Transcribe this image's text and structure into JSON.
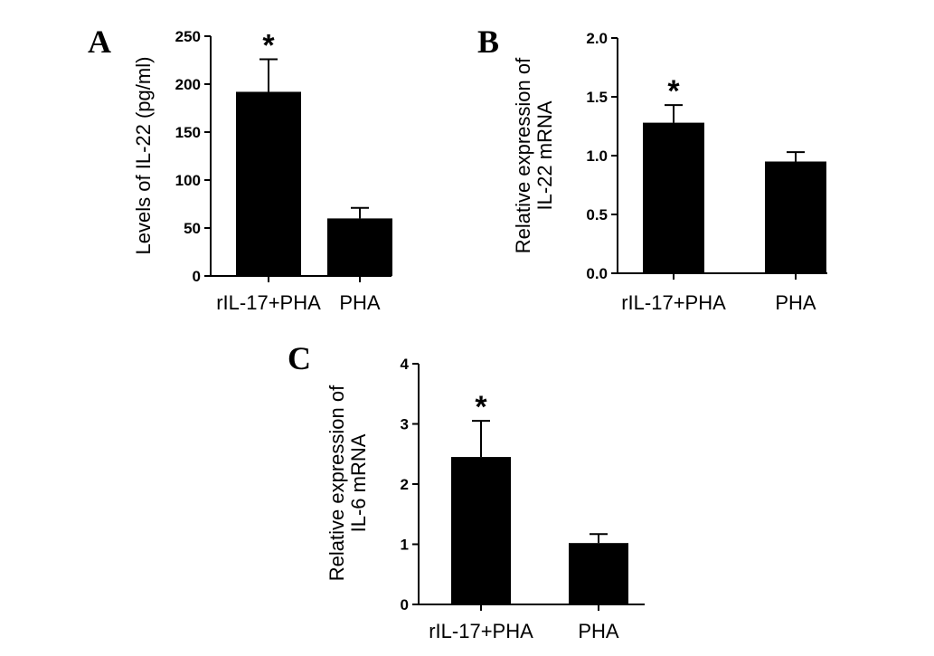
{
  "chart_data": [
    {
      "panel": "A",
      "type": "bar",
      "categories": [
        "rIL-17+PHA",
        "PHA"
      ],
      "values": [
        192,
        60
      ],
      "errors": [
        34,
        11
      ],
      "annotations": [
        "*",
        ""
      ],
      "ylabel": [
        "Levels of  IL-22 (pg/ml)"
      ],
      "ylim": [
        0,
        250
      ],
      "yticks": [
        "0",
        "50",
        "100",
        "150",
        "200",
        "250"
      ],
      "bar_color": "#000000"
    },
    {
      "panel": "B",
      "type": "bar",
      "categories": [
        "rIL-17+PHA",
        "PHA"
      ],
      "values": [
        1.28,
        0.95
      ],
      "errors": [
        0.15,
        0.08
      ],
      "annotations": [
        "*",
        ""
      ],
      "ylabel": [
        "Relative expression of",
        "IL-22 mRNA"
      ],
      "ylim": [
        0,
        2.0
      ],
      "yticks": [
        "0.0",
        "0.5",
        "1.0",
        "1.5",
        "2.0"
      ],
      "bar_color": "#000000"
    },
    {
      "panel": "C",
      "type": "bar",
      "categories": [
        "rIL-17+PHA",
        "PHA"
      ],
      "values": [
        2.45,
        1.02
      ],
      "errors": [
        0.6,
        0.15
      ],
      "annotations": [
        "*",
        ""
      ],
      "ylabel": [
        "Relative expression of",
        "IL-6 mRNA"
      ],
      "ylim": [
        0,
        4
      ],
      "yticks": [
        "0",
        "1",
        "2",
        "3",
        "4"
      ],
      "bar_color": "#000000"
    }
  ]
}
